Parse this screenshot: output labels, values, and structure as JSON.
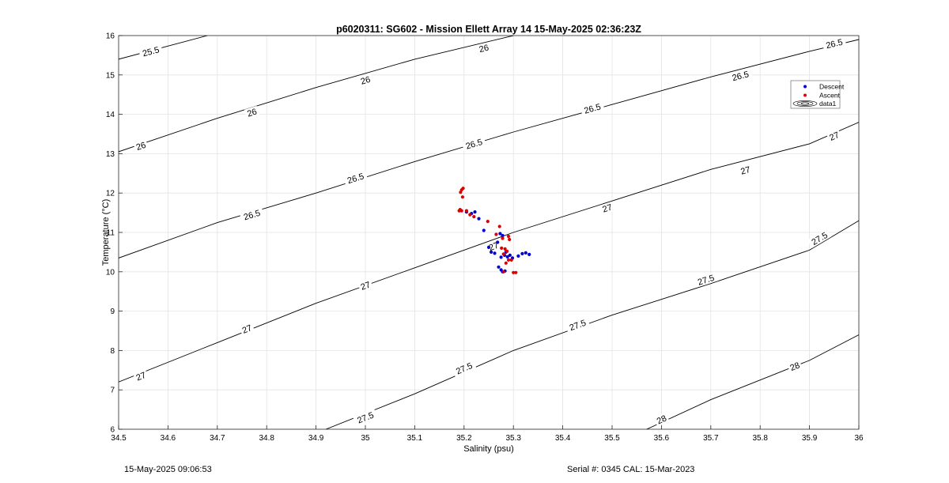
{
  "footer": {
    "left": "15-May-2025 09:06:53",
    "right": "Serial #: 0345  CAL: 15-Mar-2023"
  },
  "chart_data": {
    "type": "scatter",
    "title": "p6020311: SG602 - Mission Ellett Array 14 15-May-2025 02:36:23Z",
    "xlabel": "Salinity (psu)",
    "ylabel": "Temperature (°C)",
    "xlim": [
      34.5,
      36
    ],
    "ylim": [
      6,
      16
    ],
    "xticks": [
      34.5,
      34.6,
      34.7,
      34.8,
      34.9,
      35,
      35.1,
      35.2,
      35.3,
      35.4,
      35.5,
      35.6,
      35.7,
      35.8,
      35.9,
      36
    ],
    "yticks": [
      6,
      7,
      8,
      9,
      10,
      11,
      12,
      13,
      14,
      15,
      16
    ],
    "grid": true,
    "legend_position": "top-right",
    "legend": [
      "Descent",
      "Ascent",
      "data1"
    ],
    "colors": {
      "descent": "#0000cc",
      "ascent": "#dd0000",
      "contour": "#000000",
      "grid": "#e3e3e3"
    },
    "contours": [
      {
        "level": 25.5,
        "label": "25.5",
        "points": [
          [
            34.5,
            15.4
          ],
          [
            34.68,
            16.0
          ]
        ],
        "label_at": [
          [
            34.565,
            15.6
          ]
        ]
      },
      {
        "level": 26,
        "label": "26",
        "points": [
          [
            34.5,
            13.05
          ],
          [
            34.7,
            13.9
          ],
          [
            34.9,
            14.68
          ],
          [
            35.1,
            15.4
          ],
          [
            35.3,
            16.0
          ]
        ],
        "label_at": [
          [
            34.545,
            13.2
          ],
          [
            34.77,
            14.05
          ],
          [
            35.0,
            14.87
          ],
          [
            35.24,
            15.68
          ]
        ]
      },
      {
        "level": 26.5,
        "label": "26.5",
        "points": [
          [
            34.5,
            10.35
          ],
          [
            34.7,
            11.25
          ],
          [
            34.9,
            12.0
          ],
          [
            35.1,
            12.8
          ],
          [
            35.3,
            13.55
          ],
          [
            35.5,
            14.25
          ],
          [
            35.7,
            14.95
          ],
          [
            35.9,
            15.6
          ],
          [
            36.0,
            15.9
          ]
        ],
        "label_at": [
          [
            34.77,
            11.45
          ],
          [
            34.98,
            12.38
          ],
          [
            35.22,
            13.25
          ],
          [
            35.46,
            14.15
          ],
          [
            35.76,
            14.98
          ],
          [
            35.95,
            15.8
          ]
        ]
      },
      {
        "level": 27,
        "label": "27",
        "points": [
          [
            34.5,
            7.2
          ],
          [
            34.7,
            8.2
          ],
          [
            34.9,
            9.2
          ],
          [
            35.1,
            10.1
          ],
          [
            35.3,
            11.0
          ],
          [
            35.5,
            11.8
          ],
          [
            35.7,
            12.6
          ],
          [
            35.9,
            13.25
          ],
          [
            36.0,
            13.8
          ]
        ],
        "label_at": [
          [
            34.545,
            7.35
          ],
          [
            34.76,
            8.55
          ],
          [
            35.0,
            9.65
          ],
          [
            35.26,
            10.65
          ],
          [
            35.49,
            11.62
          ],
          [
            35.77,
            12.58
          ],
          [
            35.95,
            13.45
          ]
        ]
      },
      {
        "level": 27.5,
        "label": "27.5",
        "points": [
          [
            34.92,
            6.0
          ],
          [
            35.1,
            6.9
          ],
          [
            35.3,
            8.0
          ],
          [
            35.5,
            8.9
          ],
          [
            35.7,
            9.7
          ],
          [
            35.9,
            10.55
          ],
          [
            36.0,
            11.3
          ]
        ],
        "label_at": [
          [
            35.0,
            6.3
          ],
          [
            35.2,
            7.55
          ],
          [
            35.43,
            8.65
          ],
          [
            35.69,
            9.8
          ],
          [
            35.92,
            10.85
          ]
        ]
      },
      {
        "level": 28,
        "label": "28",
        "points": [
          [
            35.57,
            6.0
          ],
          [
            35.7,
            6.75
          ],
          [
            35.9,
            7.75
          ],
          [
            36.0,
            8.4
          ]
        ],
        "label_at": [
          [
            35.6,
            6.25
          ],
          [
            35.87,
            7.6
          ]
        ]
      }
    ],
    "series": [
      {
        "name": "Descent",
        "points": [
          [
            35.205,
            11.52
          ],
          [
            35.215,
            11.48
          ],
          [
            35.222,
            11.52
          ],
          [
            35.23,
            11.35
          ],
          [
            35.24,
            11.05
          ],
          [
            35.25,
            10.62
          ],
          [
            35.255,
            10.5
          ],
          [
            35.262,
            10.47
          ],
          [
            35.268,
            10.75
          ],
          [
            35.273,
            10.97
          ],
          [
            35.278,
            10.92
          ],
          [
            35.285,
            10.5
          ],
          [
            35.282,
            10.42
          ],
          [
            35.275,
            10.37
          ],
          [
            35.27,
            10.12
          ],
          [
            35.275,
            10.05
          ],
          [
            35.278,
            10.0
          ],
          [
            35.283,
            10.02
          ],
          [
            35.288,
            10.38
          ],
          [
            35.293,
            10.42
          ],
          [
            35.298,
            10.35
          ],
          [
            35.31,
            10.4
          ],
          [
            35.318,
            10.46
          ],
          [
            35.325,
            10.48
          ],
          [
            35.332,
            10.44
          ]
        ]
      },
      {
        "name": "Ascent",
        "points": [
          [
            35.19,
            11.55
          ],
          [
            35.192,
            11.58
          ],
          [
            35.195,
            11.55
          ],
          [
            35.193,
            12.02
          ],
          [
            35.195,
            12.08
          ],
          [
            35.198,
            12.12
          ],
          [
            35.197,
            11.9
          ],
          [
            35.205,
            11.55
          ],
          [
            35.212,
            11.45
          ],
          [
            35.22,
            11.4
          ],
          [
            35.248,
            11.28
          ],
          [
            35.265,
            10.95
          ],
          [
            35.272,
            11.15
          ],
          [
            35.278,
            10.85
          ],
          [
            35.276,
            10.6
          ],
          [
            35.28,
            10.45
          ],
          [
            35.283,
            10.58
          ],
          [
            35.287,
            10.52
          ],
          [
            35.29,
            10.9
          ],
          [
            35.292,
            10.82
          ],
          [
            35.285,
            10.22
          ],
          [
            35.28,
            10.0
          ],
          [
            35.29,
            10.3
          ],
          [
            35.296,
            10.3
          ],
          [
            35.3,
            9.98
          ],
          [
            35.305,
            9.98
          ]
        ]
      }
    ]
  }
}
